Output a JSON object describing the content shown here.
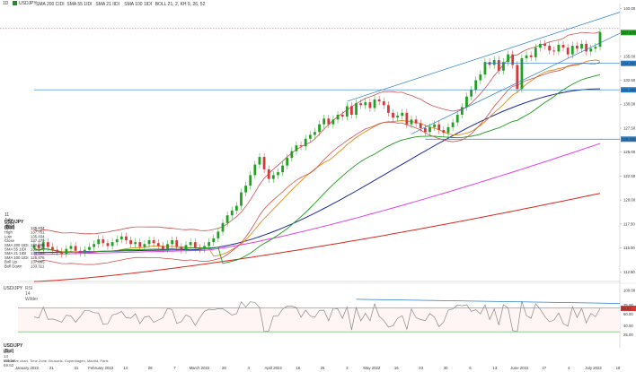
{
  "header": {
    "timeframe": "1D",
    "symbol": "USDJPY",
    "indicators": [
      "SMA 200 CIDI",
      "SMA 55 1IDI",
      "SMA 21 IIDI",
      "SMA 100 1IDI",
      "BOLL 21, 2, KH 9, 26, 52"
    ]
  },
  "legend": {
    "date": "11 July 2022",
    "title": "USD/JPY (Bid)",
    "rows": [
      {
        "label": "Open",
        "value": "135.834"
      },
      {
        "label": "High",
        "value": "137.751"
      },
      {
        "label": "Low",
        "value": "135.834"
      },
      {
        "label": "Close",
        "value": "137.479"
      },
      {
        "label": "SMA 200 1IDI",
        "value": "120.698"
      },
      {
        "label": "SMA 55 1IDI",
        "value": "131.576"
      },
      {
        "label": "SMA 21 1IDI",
        "value": "134.469"
      },
      {
        "label": "SMA 100 1IDI",
        "value": "125.876"
      },
      {
        "label": "Boll Up",
        "value": "137.665"
      },
      {
        "label": "Boll Down",
        "value": "133.311"
      }
    ]
  },
  "rsi_header": {
    "symbol": "USD/JPY",
    "indicator": "RSI 14 Wilder"
  },
  "rsi_legend": {
    "title": "USD/JPY (Bid)",
    "value": "RSI 14 Wilder 69.62"
  },
  "footer": {
    "text": "Indicative chart. Time Zone: Brussels, Copenhagen, Madrid, Paris"
  },
  "colors": {
    "candle_up": "#22a022",
    "candle_down": "#d23a3a",
    "sma200": "#d9281e",
    "sma55": "#1e2a9a",
    "sma21": "#e08a1a",
    "sma100": "#e040e0",
    "boll": "#d05050",
    "kijun": "#1c9a1c",
    "trend": "#2a7ec8",
    "rsi": "#888888",
    "rsi_band": "#d23a3a",
    "rsi_low": "#22a022"
  },
  "chart_data": [
    {
      "type": "candlestick",
      "title": "USD/JPY (Bid)",
      "x_labels": [
        "January 2022",
        "21",
        "31",
        "February 2022",
        "14",
        "28",
        "7",
        "March 2022",
        "28",
        "4",
        "April 2022",
        "18",
        "25",
        "2",
        "May 2022",
        "16",
        "23",
        "30",
        "6",
        "13",
        "June 2022",
        "27",
        "4",
        "July 2022",
        "18"
      ],
      "y_ticks": [
        112.5,
        115.0,
        117.5,
        120.0,
        122.5,
        125.0,
        127.5,
        130.0,
        132.5,
        135.0,
        137.5,
        140.0
      ],
      "ylim": [
        111.5,
        140.5
      ],
      "price_tags": [
        {
          "label": "137.479",
          "value": 137.48,
          "color": "#22a022"
        },
        {
          "label": "134.260",
          "value": 134.26,
          "color": "#2a7ec8"
        },
        {
          "label": "131.496",
          "value": 131.5,
          "color": "#2a7ec8"
        },
        {
          "label": "126.346",
          "value": 126.35,
          "color": "#2a7ec8"
        }
      ],
      "reference_line": 137.9,
      "closes": [
        115.3,
        115.0,
        115.6,
        115.1,
        114.8,
        114.6,
        114.4,
        114.9,
        115.2,
        114.7,
        114.5,
        114.8,
        115.1,
        115.4,
        115.9,
        115.5,
        115.2,
        115.6,
        115.9,
        116.2,
        115.8,
        115.4,
        115.6,
        115.1,
        115.4,
        115.8,
        115.5,
        115.2,
        114.9,
        115.4,
        115.8,
        115.1,
        114.8,
        115.3,
        115.6,
        115.0,
        114.9,
        115.2,
        115.6,
        116.0,
        116.7,
        117.6,
        118.4,
        118.9,
        119.4,
        120.8,
        121.5,
        122.6,
        123.7,
        124.5,
        123.2,
        122.2,
        122.6,
        122.9,
        123.6,
        124.4,
        125.1,
        125.7,
        125.6,
        126.4,
        126.8,
        127.1,
        127.9,
        128.5,
        127.9,
        128.4,
        128.9,
        128.7,
        129.8,
        128.9,
        130.1,
        129.9,
        130.2,
        129.6,
        130.5,
        130.3,
        129.9,
        129.1,
        128.6,
        128.8,
        129.1,
        127.9,
        128.4,
        128.0,
        127.5,
        127.1,
        127.6,
        127.9,
        127.3,
        127.0,
        127.6,
        128.1,
        128.9,
        129.7,
        130.8,
        131.5,
        132.5,
        133.1,
        134.4,
        134.1,
        134.6,
        133.5,
        134.4,
        135.2,
        134.1,
        131.6,
        134.8,
        135.1,
        134.9,
        135.9,
        136.3,
        136.1,
        135.6,
        135.5,
        136.2,
        135.9,
        135.2,
        136.1,
        135.8,
        136.3,
        135.5,
        135.8,
        136.0,
        137.5
      ],
      "sma200_end": 120.7,
      "sma55_end": 131.6,
      "sma21_end": 134.5,
      "sma100_end": 125.9,
      "boll_up_end": 137.7,
      "boll_down_end": 133.3
    },
    {
      "type": "line",
      "title": "RSI 14 Wilder",
      "y_ticks": [
        25.0,
        40.0,
        60.0,
        75.0,
        100.0
      ],
      "ylim": [
        15,
        100
      ],
      "bands": [
        30,
        70
      ],
      "last_value": 69.62
    }
  ]
}
